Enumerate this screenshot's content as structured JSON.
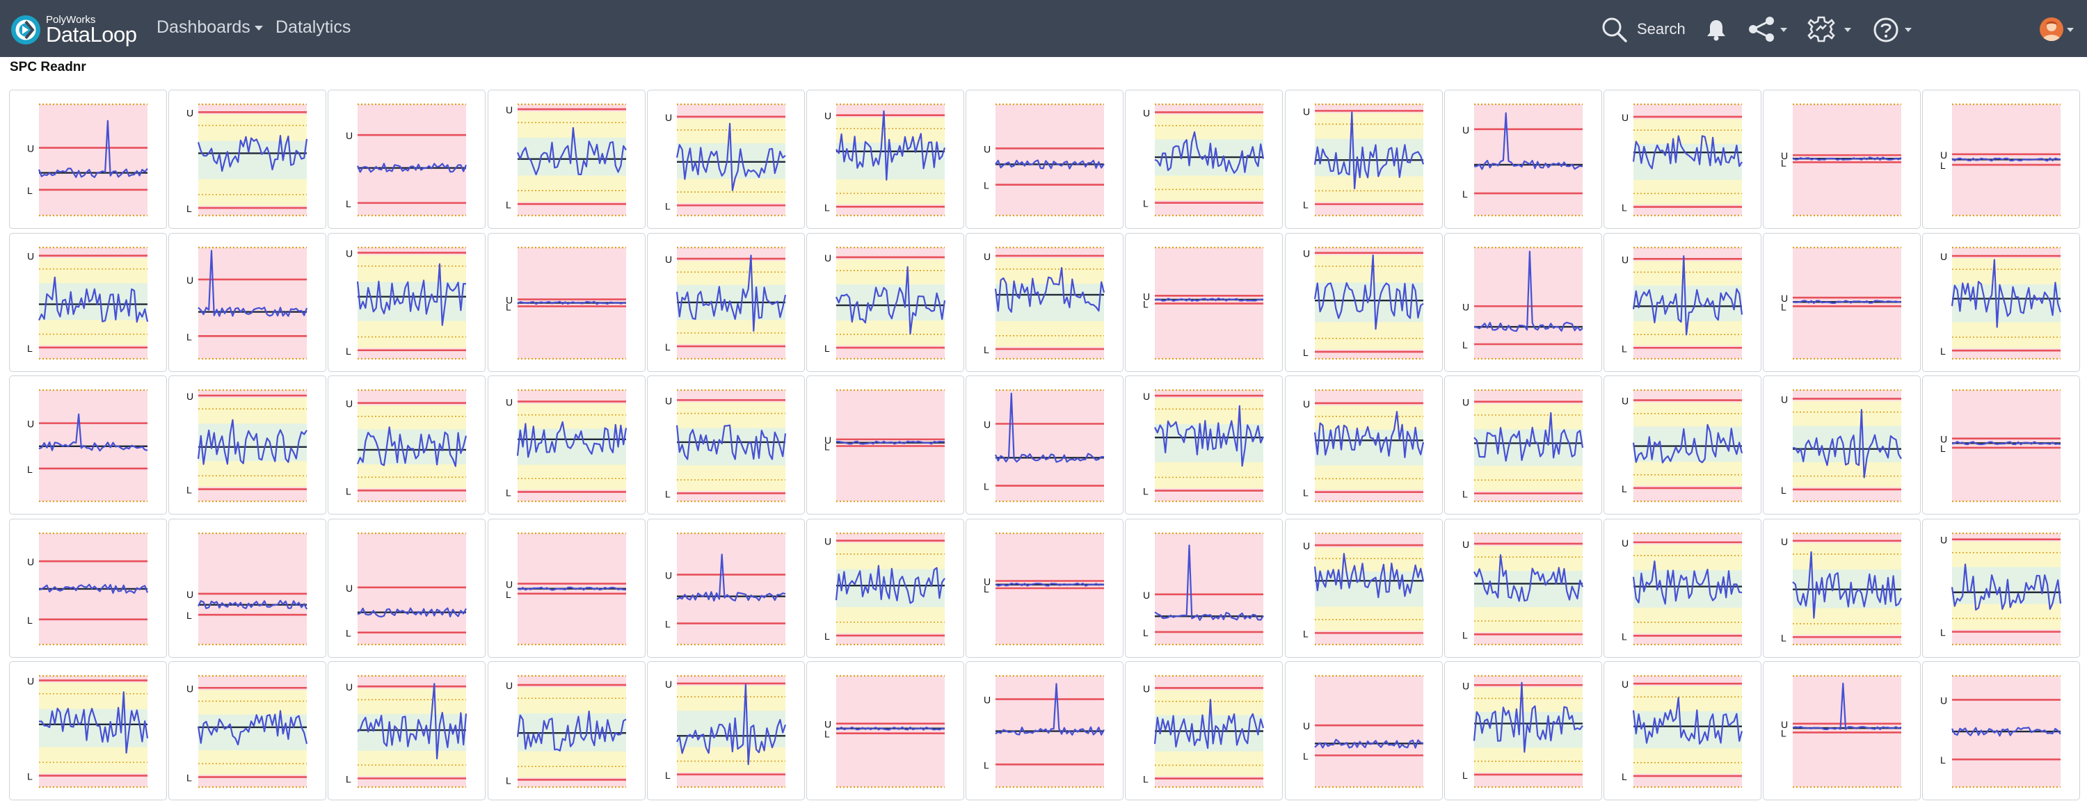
{
  "app": {
    "logo_small": "PolyWorks",
    "logo_big": "DataLoop",
    "nav": [
      {
        "label": "Dashboards",
        "has_dropdown": true
      },
      {
        "label": "Datalytics",
        "has_dropdown": false
      }
    ],
    "search_label": "Search",
    "icons": [
      "search-icon",
      "bell-icon",
      "share-icon",
      "settings-gear-icon",
      "help-icon",
      "avatar"
    ],
    "colors": {
      "topbar": "#3d4654",
      "zone_red": "#fbdde3",
      "zone_yellow": "#fbf7c8",
      "zone_green": "#e3f2e4",
      "limit_line": "#e8505b",
      "warn_line": "#e0a020",
      "center_line": "#1f2937",
      "series_line": "#4650d4"
    }
  },
  "page": {
    "title": "SPC Readnr"
  },
  "chart_labels": {
    "upper": "U",
    "lower": "L"
  },
  "grid": {
    "rows": 5,
    "cols": 13
  },
  "charts": [
    {
      "kind": "red",
      "seed": 1,
      "spike": 0.8
    },
    {
      "kind": "full",
      "seed": 2,
      "spike": 0.3
    },
    {
      "kind": "red",
      "seed": 3,
      "spike": 0.2
    },
    {
      "kind": "full",
      "seed": 4,
      "spike": 0.6
    },
    {
      "kind": "full",
      "seed": 5,
      "spike": 0.7
    },
    {
      "kind": "full",
      "seed": 6,
      "spike": 0.9
    },
    {
      "kind": "red",
      "seed": 7,
      "spike": 0.2
    },
    {
      "kind": "full",
      "seed": 8,
      "spike": 0.5
    },
    {
      "kind": "full",
      "seed": 9,
      "spike": 0.9
    },
    {
      "kind": "red",
      "seed": 10,
      "spike": 0.9
    },
    {
      "kind": "full",
      "seed": 11,
      "spike": 0.3
    },
    {
      "kind": "narrow",
      "seed": 12,
      "spike": 0.1
    },
    {
      "kind": "narrow",
      "seed": 13,
      "spike": 0.1
    },
    {
      "kind": "full",
      "seed": 14,
      "spike": 0.5
    },
    {
      "kind": "red",
      "seed": 15,
      "spike": 1.0
    },
    {
      "kind": "full",
      "seed": 16,
      "spike": 0.7
    },
    {
      "kind": "narrow",
      "seed": 17,
      "spike": 0.1
    },
    {
      "kind": "full",
      "seed": 18,
      "spike": 0.9
    },
    {
      "kind": "full",
      "seed": 19,
      "spike": 0.7
    },
    {
      "kind": "full",
      "seed": 20,
      "spike": 0.6
    },
    {
      "kind": "narrow",
      "seed": 21,
      "spike": 0.1
    },
    {
      "kind": "full",
      "seed": 22,
      "spike": 0.9
    },
    {
      "kind": "red",
      "seed": 23,
      "spike": 1.0
    },
    {
      "kind": "full",
      "seed": 24,
      "spike": 0.9
    },
    {
      "kind": "narrow",
      "seed": 25,
      "spike": 0.1
    },
    {
      "kind": "full",
      "seed": 26,
      "spike": 0.8
    },
    {
      "kind": "red",
      "seed": 27,
      "spike": 0.6
    },
    {
      "kind": "full",
      "seed": 28,
      "spike": 0.5
    },
    {
      "kind": "full",
      "seed": 29,
      "spike": 0.4
    },
    {
      "kind": "full",
      "seed": 30,
      "spike": 0.3
    },
    {
      "kind": "full",
      "seed": 31,
      "spike": 0.3
    },
    {
      "kind": "narrow",
      "seed": 32,
      "spike": 0.0
    },
    {
      "kind": "red",
      "seed": 33,
      "spike": 1.0
    },
    {
      "kind": "full",
      "seed": 34,
      "spike": 0.7
    },
    {
      "kind": "full",
      "seed": 35,
      "spike": 0.6
    },
    {
      "kind": "full",
      "seed": 36,
      "spike": 0.6
    },
    {
      "kind": "full",
      "seed": 37,
      "spike": 0.4
    },
    {
      "kind": "full",
      "seed": 38,
      "spike": 0.7
    },
    {
      "kind": "narrow",
      "seed": 39,
      "spike": 0.0
    },
    {
      "kind": "red",
      "seed": 40,
      "spike": 0.1
    },
    {
      "kind": "red",
      "seed": 41,
      "spike": 0.2
    },
    {
      "kind": "red",
      "seed": 42,
      "spike": 0.1
    },
    {
      "kind": "narrow",
      "seed": 43,
      "spike": 0.1
    },
    {
      "kind": "red",
      "seed": 44,
      "spike": 0.7
    },
    {
      "kind": "full",
      "seed": 45,
      "spike": 0.4
    },
    {
      "kind": "narrow",
      "seed": 46,
      "spike": 0.1
    },
    {
      "kind": "red",
      "seed": 47,
      "spike": 0.9
    },
    {
      "kind": "full",
      "seed": 48,
      "spike": 0.6
    },
    {
      "kind": "full",
      "seed": 49,
      "spike": 0.6
    },
    {
      "kind": "full",
      "seed": 50,
      "spike": 0.5
    },
    {
      "kind": "full",
      "seed": 51,
      "spike": 0.7
    },
    {
      "kind": "full",
      "seed": 52,
      "spike": 0.5
    },
    {
      "kind": "full",
      "seed": 53,
      "spike": 0.7
    },
    {
      "kind": "full",
      "seed": 54,
      "spike": 0.3
    },
    {
      "kind": "full",
      "seed": 55,
      "spike": 0.9
    },
    {
      "kind": "full",
      "seed": 56,
      "spike": 0.4
    },
    {
      "kind": "full",
      "seed": 57,
      "spike": 0.9
    },
    {
      "kind": "narrow",
      "seed": 58,
      "spike": 0.0
    },
    {
      "kind": "red",
      "seed": 59,
      "spike": 0.9
    },
    {
      "kind": "full",
      "seed": 60,
      "spike": 0.6
    },
    {
      "kind": "red",
      "seed": 61,
      "spike": 0.1
    },
    {
      "kind": "full",
      "seed": 62,
      "spike": 0.9
    },
    {
      "kind": "full",
      "seed": 63,
      "spike": 0.6
    },
    {
      "kind": "narrow",
      "seed": 64,
      "spike": 0.9
    },
    {
      "kind": "red",
      "seed": 65,
      "spike": 0.0
    }
  ]
}
